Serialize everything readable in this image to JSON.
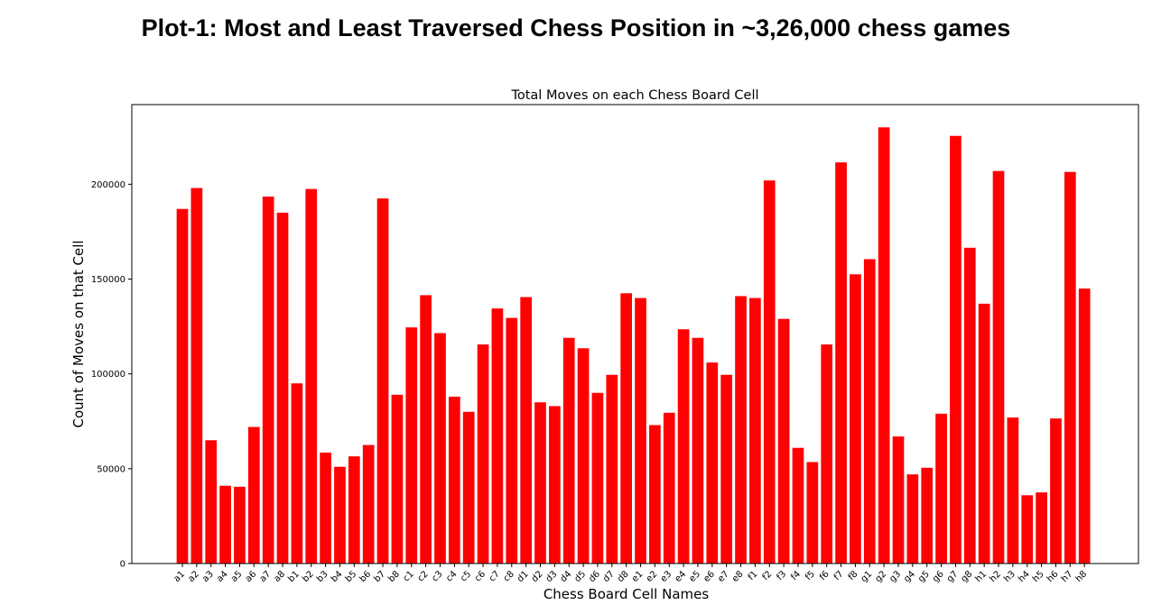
{
  "figure": {
    "suptitle": "Plot-1: Most and Least Traversed Chess Position in ~3,26,000 chess games"
  },
  "chart_data": {
    "type": "bar",
    "title": "Total Moves on each Chess Board Cell",
    "xlabel": "Chess Board Cell Names",
    "ylabel": "Count of Moves on that Cell",
    "ylim": [
      0,
      242000
    ],
    "yticks": [
      0,
      50000,
      100000,
      150000,
      200000
    ],
    "grid": false,
    "color": "#ff0000",
    "categories": [
      "a1",
      "a2",
      "a3",
      "a4",
      "a5",
      "a6",
      "a7",
      "a8",
      "b1",
      "b2",
      "b3",
      "b4",
      "b5",
      "b6",
      "b7",
      "b8",
      "c1",
      "c2",
      "c3",
      "c4",
      "c5",
      "c6",
      "c7",
      "c8",
      "d1",
      "d2",
      "d3",
      "d4",
      "d5",
      "d6",
      "d7",
      "d8",
      "e1",
      "e2",
      "e3",
      "e4",
      "e5",
      "e6",
      "e7",
      "e8",
      "f1",
      "f2",
      "f3",
      "f4",
      "f5",
      "f6",
      "f7",
      "f8",
      "g1",
      "g2",
      "g3",
      "g4",
      "g5",
      "g6",
      "g7",
      "g8",
      "h1",
      "h2",
      "h3",
      "h4",
      "h5",
      "h6",
      "h7",
      "h8"
    ],
    "values": [
      187000,
      198000,
      65000,
      41000,
      40500,
      72000,
      193500,
      185000,
      95000,
      197500,
      58500,
      51000,
      56500,
      62500,
      192500,
      89000,
      124500,
      141500,
      121500,
      88000,
      80000,
      115500,
      134500,
      129500,
      140500,
      85000,
      83000,
      119000,
      113500,
      90000,
      99500,
      142500,
      140000,
      73000,
      79500,
      123500,
      119000,
      106000,
      99500,
      141000,
      140000,
      202000,
      129000,
      61000,
      53500,
      115500,
      211500,
      152500,
      160500,
      230000,
      67000,
      47000,
      50500,
      79000,
      225500,
      166500,
      137000,
      207000,
      77000,
      36000,
      37500,
      76500,
      206500,
      145000
    ]
  }
}
